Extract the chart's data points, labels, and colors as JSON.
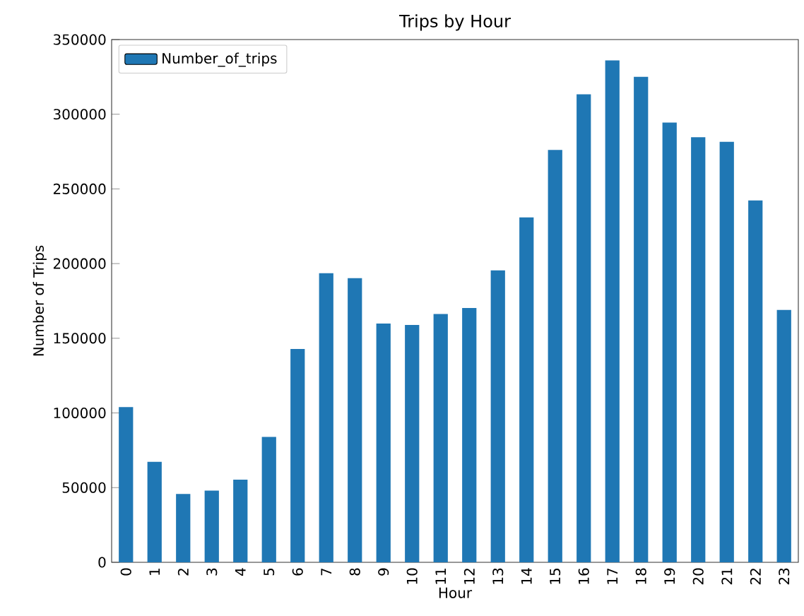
{
  "chart_data": {
    "type": "bar",
    "title": "Trips by Hour",
    "xlabel": "Hour",
    "ylabel": "Number of Trips",
    "categories": [
      "0",
      "1",
      "2",
      "3",
      "4",
      "5",
      "6",
      "7",
      "8",
      "9",
      "10",
      "11",
      "12",
      "13",
      "14",
      "15",
      "16",
      "17",
      "18",
      "19",
      "20",
      "21",
      "22",
      "23"
    ],
    "series": [
      {
        "name": "Number_of_trips",
        "color": "#1f77b4",
        "values": [
          103900,
          67300,
          45800,
          48000,
          55300,
          84000,
          142800,
          193600,
          190200,
          159800,
          158900,
          166200,
          170300,
          195500,
          230900,
          276100,
          313400,
          336100,
          325100,
          294400,
          284600,
          281500,
          242300,
          169000
        ]
      }
    ],
    "ylim": [
      0,
      350000
    ],
    "yticks": [
      0,
      50000,
      100000,
      150000,
      200000,
      250000,
      300000,
      350000
    ],
    "legend": "top left",
    "grid": false
  }
}
